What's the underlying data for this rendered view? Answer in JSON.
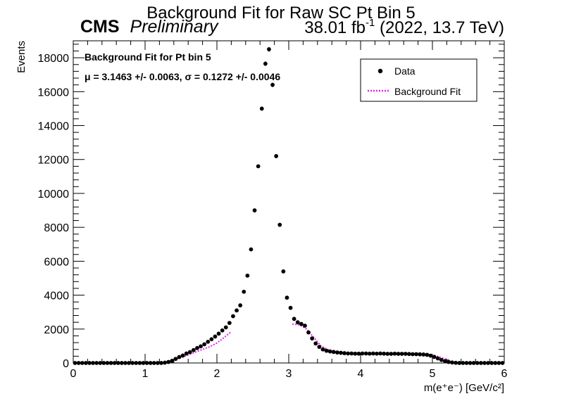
{
  "chart_data": {
    "type": "scatter",
    "title": "Background Fit for Raw SC Pt Bin 5",
    "experiment": "CMS",
    "experiment_tag": "Preliminary",
    "lumi_value": "38.01 fb",
    "lumi_exp": "-1",
    "lumi_rest": " (2022, 13.7 TeV)",
    "fit_label": "Background Fit for Pt bin 5",
    "fit_params": "μ = 3.1463 +/- 0.0063, σ = 0.1272 +/- 0.0046",
    "xlabel": "m(e⁺e⁻) [GeV/c²]",
    "ylabel": "Events",
    "xlim": [
      0,
      6
    ],
    "ylim": [
      0,
      19000
    ],
    "x_ticks": [
      0,
      1,
      2,
      3,
      4,
      5,
      6
    ],
    "y_ticks": [
      0,
      2000,
      4000,
      6000,
      8000,
      10000,
      12000,
      14000,
      16000,
      18000
    ],
    "grid": false,
    "legend_position": "top-right",
    "colors": {
      "data": "#000000",
      "fit": "#e620e6"
    },
    "series": [
      {
        "name": "Data",
        "marker": "point",
        "x": [
          0.025,
          0.075,
          0.125,
          0.175,
          0.225,
          0.275,
          0.325,
          0.375,
          0.425,
          0.475,
          0.525,
          0.575,
          0.625,
          0.675,
          0.725,
          0.775,
          0.825,
          0.875,
          0.925,
          0.975,
          1.025,
          1.075,
          1.125,
          1.175,
          1.225,
          1.275,
          1.325,
          1.375,
          1.425,
          1.475,
          1.525,
          1.575,
          1.625,
          1.675,
          1.725,
          1.775,
          1.825,
          1.875,
          1.925,
          1.975,
          2.025,
          2.075,
          2.125,
          2.175,
          2.225,
          2.275,
          2.325,
          2.375,
          2.425,
          2.475,
          2.525,
          2.575,
          2.625,
          2.675,
          2.725,
          2.775,
          2.825,
          2.875,
          2.925,
          2.975,
          3.025,
          3.075,
          3.125,
          3.175,
          3.225,
          3.275,
          3.325,
          3.375,
          3.425,
          3.475,
          3.525,
          3.575,
          3.625,
          3.675,
          3.725,
          3.775,
          3.825,
          3.875,
          3.925,
          3.975,
          4.025,
          4.075,
          4.125,
          4.175,
          4.225,
          4.275,
          4.325,
          4.375,
          4.425,
          4.475,
          4.525,
          4.575,
          4.625,
          4.675,
          4.725,
          4.775,
          4.825,
          4.875,
          4.925,
          4.975,
          5.025,
          5.075,
          5.125,
          5.175,
          5.225,
          5.275,
          5.325,
          5.375,
          5.425,
          5.475,
          5.525,
          5.575,
          5.625,
          5.675,
          5.725,
          5.775,
          5.825,
          5.875,
          5.925,
          5.975
        ],
        "y": [
          0,
          0,
          0,
          0,
          0,
          0,
          0,
          0,
          0,
          0,
          0,
          0,
          0,
          0,
          0,
          0,
          0,
          0,
          0,
          0,
          0,
          0,
          0,
          0,
          0,
          20,
          60,
          130,
          240,
          350,
          440,
          560,
          640,
          760,
          880,
          980,
          1100,
          1250,
          1400,
          1560,
          1730,
          1920,
          2100,
          2360,
          2760,
          3100,
          3400,
          4200,
          5150,
          6700,
          9000,
          11600,
          15000,
          17650,
          18500,
          16400,
          12200,
          8150,
          5400,
          3850,
          3250,
          2600,
          2400,
          2300,
          2200,
          1800,
          1450,
          1150,
          950,
          800,
          720,
          680,
          650,
          620,
          600,
          580,
          560,
          560,
          550,
          550,
          560,
          560,
          550,
          560,
          550,
          560,
          550,
          540,
          540,
          550,
          540,
          540,
          540,
          530,
          520,
          520,
          510,
          500,
          480,
          430,
          360,
          270,
          180,
          110,
          60,
          30,
          10,
          0,
          0,
          0,
          0,
          0,
          0,
          0,
          0,
          0,
          0,
          0,
          0,
          0
        ]
      },
      {
        "name": "Background Fit",
        "line_style": "dotted",
        "segments": [
          {
            "x": [
              1.4,
              1.5,
              1.6,
              1.7,
              1.8,
              1.9,
              2.0,
              2.1,
              2.2
            ],
            "y": [
              200,
              320,
              470,
              640,
              800,
              960,
              1180,
              1500,
              1850
            ]
          },
          {
            "x": [
              3.05,
              3.15,
              3.25,
              3.35,
              3.45,
              3.55,
              3.65,
              3.75,
              3.85,
              4.0,
              4.25,
              4.5,
              4.75,
              4.95,
              5.05,
              5.15,
              5.25
            ],
            "y": [
              2300,
              2250,
              2000,
              1500,
              1000,
              780,
              680,
              620,
              590,
              560,
              550,
              545,
              535,
              500,
              420,
              280,
              150
            ]
          }
        ]
      }
    ]
  }
}
